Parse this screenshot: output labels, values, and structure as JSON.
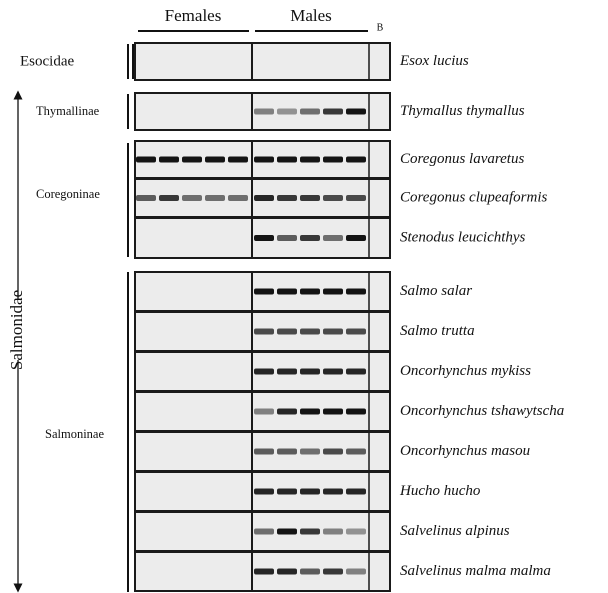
{
  "header": {
    "females": "Females",
    "males": "Males",
    "blank": "B"
  },
  "family_label": "Salmonidae",
  "groups": [
    {
      "label": "Esocidae"
    },
    {
      "label": "Thymallinae"
    },
    {
      "label": "Coregoninae"
    },
    {
      "label": "Salmoninae"
    }
  ],
  "rows": [
    {
      "species": "Esox lucius"
    },
    {
      "species": "Thymallus thymallus"
    },
    {
      "species": "Coregonus lavaretus"
    },
    {
      "species": "Coregonus clupeaformis"
    },
    {
      "species": "Stenodus leucichthys"
    },
    {
      "species": "Salmo salar"
    },
    {
      "species": "Salmo trutta"
    },
    {
      "species": "Oncorhynchus mykiss"
    },
    {
      "species": "Oncorhynchus tshawytscha"
    },
    {
      "species": "Oncorhynchus masou"
    },
    {
      "species": "Hucho hucho"
    },
    {
      "species": "Salvelinus alpinus"
    },
    {
      "species": "Salvelinus malma malma"
    }
  ]
}
